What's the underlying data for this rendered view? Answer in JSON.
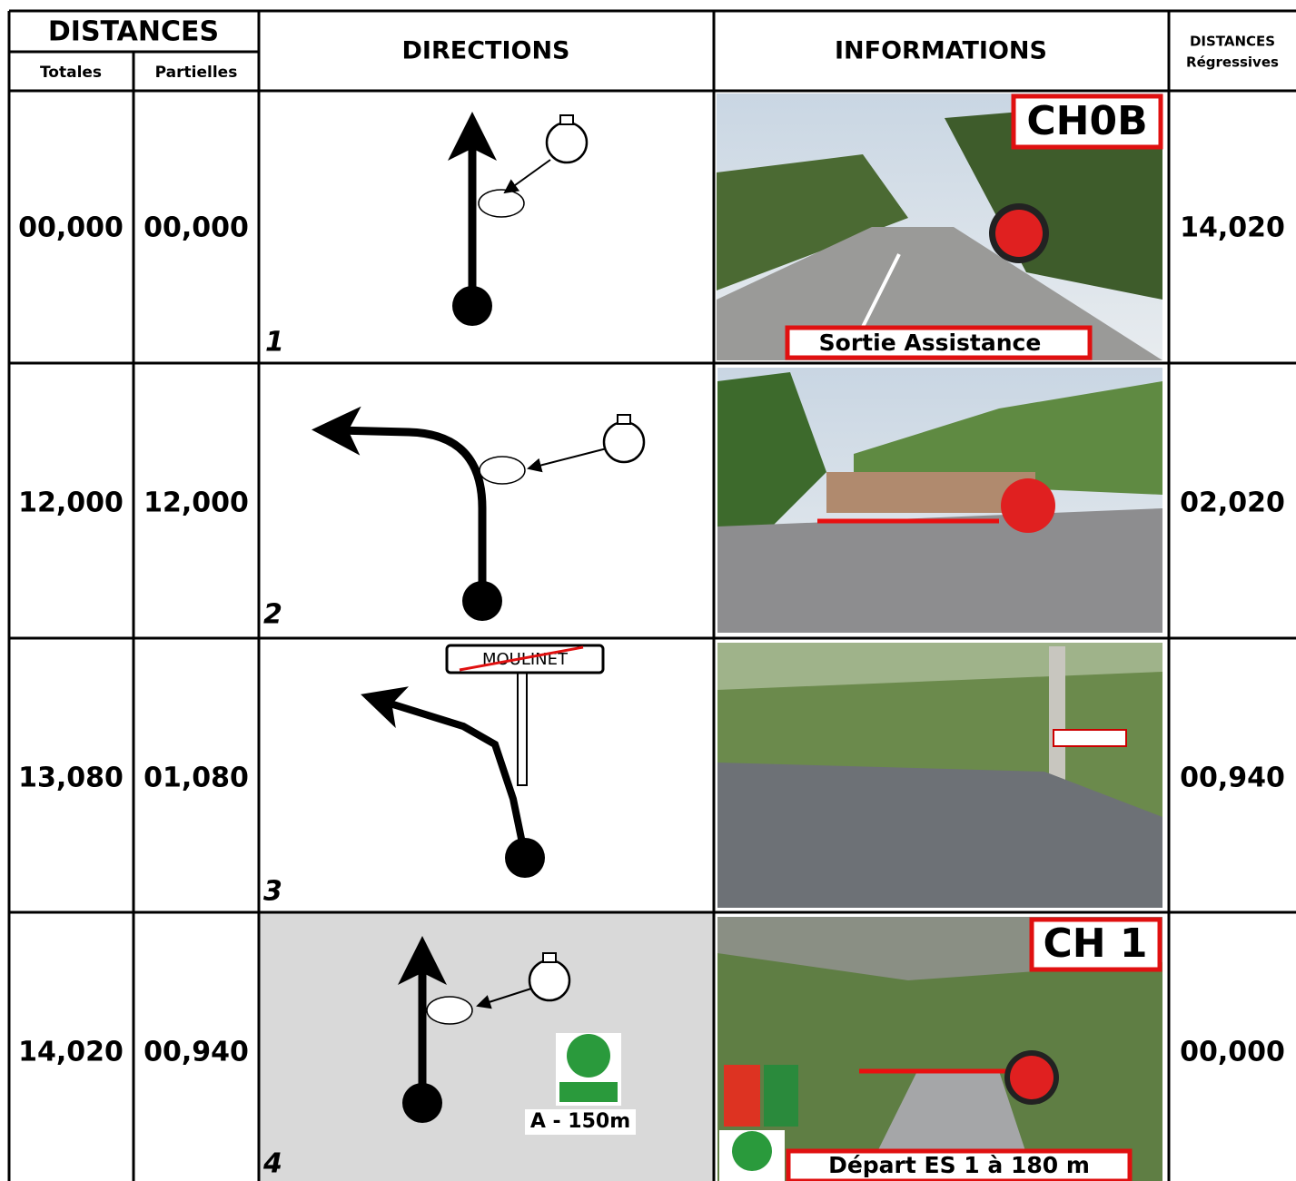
{
  "header": {
    "distances": "DISTANCES",
    "totales": "Totales",
    "partielles": "Partielles",
    "directions": "DIRECTIONS",
    "informations": "INFORMATIONS",
    "regressive_title": "DISTANCES",
    "regressive_sub": "Régressives"
  },
  "rows": [
    {
      "total": "00,000",
      "partial": "00,000",
      "step": "1",
      "remaining": "14,020",
      "badge": "CH0B",
      "caption": "Sortie Assistance"
    },
    {
      "total": "12,000",
      "partial": "12,000",
      "step": "2",
      "remaining": "02,020"
    },
    {
      "total": "13,080",
      "partial": "01,080",
      "step": "3",
      "remaining": "00,940",
      "sign": "MOULINET"
    },
    {
      "total": "14,020",
      "partial": "00,940",
      "step": "4",
      "remaining": "00,000",
      "badge": "CH 1",
      "caption": "Départ ES 1 à 180 m",
      "note": "A - 150m"
    }
  ]
}
